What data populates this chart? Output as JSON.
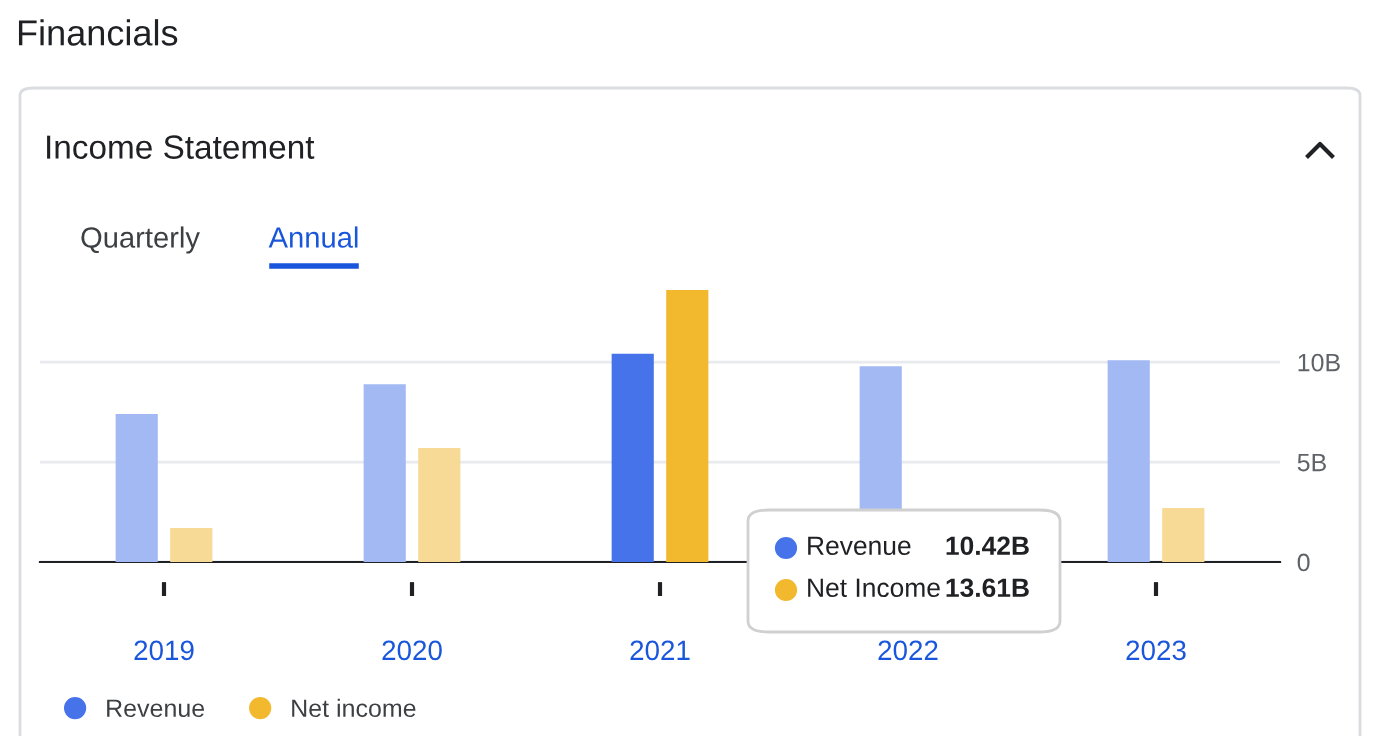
{
  "chart_data": {
    "type": "bar",
    "title": "Financials",
    "subtitle": "Income Statement",
    "categories": [
      "2019",
      "2020",
      "2021",
      "2022",
      "2023"
    ],
    "series": [
      {
        "name": "Revenue",
        "color": "#4673ea",
        "colors": [
          "#a3b9f4",
          "#a3b9f4",
          "#4673ea",
          "#a3b9f4",
          "#a3b9f4"
        ],
        "values": [
          7.4,
          8.9,
          10.42,
          9.8,
          10.1
        ]
      },
      {
        "name": "Net income",
        "color": "#f2b92e",
        "colors": [
          "#f7da95",
          "#f7da95",
          "#f2b92e",
          "#f7da95",
          "#f7da95"
        ],
        "values": [
          1.7,
          5.7,
          13.61,
          null,
          2.7
        ]
      }
    ],
    "ylim": [
      0,
      13.61
    ],
    "yticks": [
      0,
      {
        "value": 5,
        "label": "5B"
      },
      {
        "value": 10,
        "label": "10B"
      }
    ],
    "grid": "y",
    "legend": "bottom left",
    "annotations": [
      "Quarterly",
      "Annual",
      "Revenue",
      "10.42B",
      "Net Income",
      "13.61B"
    ]
  }
}
